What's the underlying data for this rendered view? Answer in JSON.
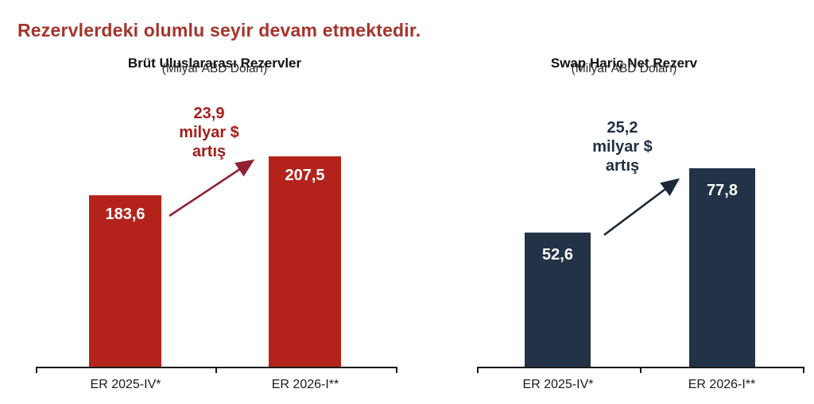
{
  "page": {
    "title": "Rezervlerdeki olumlu seyir devam etmektedir."
  },
  "colors": {
    "title": "#A5342D",
    "axis": "#1A1A1A",
    "background": "#FFFFFF"
  },
  "chart_data": [
    {
      "type": "bar",
      "title": "Brüt Uluslararası Rezervler",
      "subtitle": "(Milyar ABD Doları)",
      "categories": [
        "ER 2025-IV*",
        "ER 2026-I**"
      ],
      "values": [
        183.6,
        207.5
      ],
      "value_labels": [
        "183,6",
        "207,5"
      ],
      "bar_color": "#B3231B",
      "annotation": {
        "lines": [
          "23,9",
          "milyar $",
          "artış"
        ],
        "color": "#A01F1B"
      },
      "arrow_color": "#8E2233",
      "legend": false,
      "y_axis": "hidden",
      "grid": false
    },
    {
      "type": "bar",
      "title": "Swap Hariç Net Rezerv",
      "subtitle": "(Milyar ABD Doları)",
      "categories": [
        "ER 2025-IV*",
        "ER 2026-I**"
      ],
      "values": [
        52.6,
        77.8
      ],
      "value_labels": [
        "52,6",
        "77,8"
      ],
      "bar_color": "#233247",
      "annotation": {
        "lines": [
          "25,2",
          "milyar $",
          "artış"
        ],
        "color": "#1F3044"
      },
      "arrow_color": "#1B2838",
      "legend": false,
      "y_axis": "hidden",
      "grid": false
    }
  ]
}
